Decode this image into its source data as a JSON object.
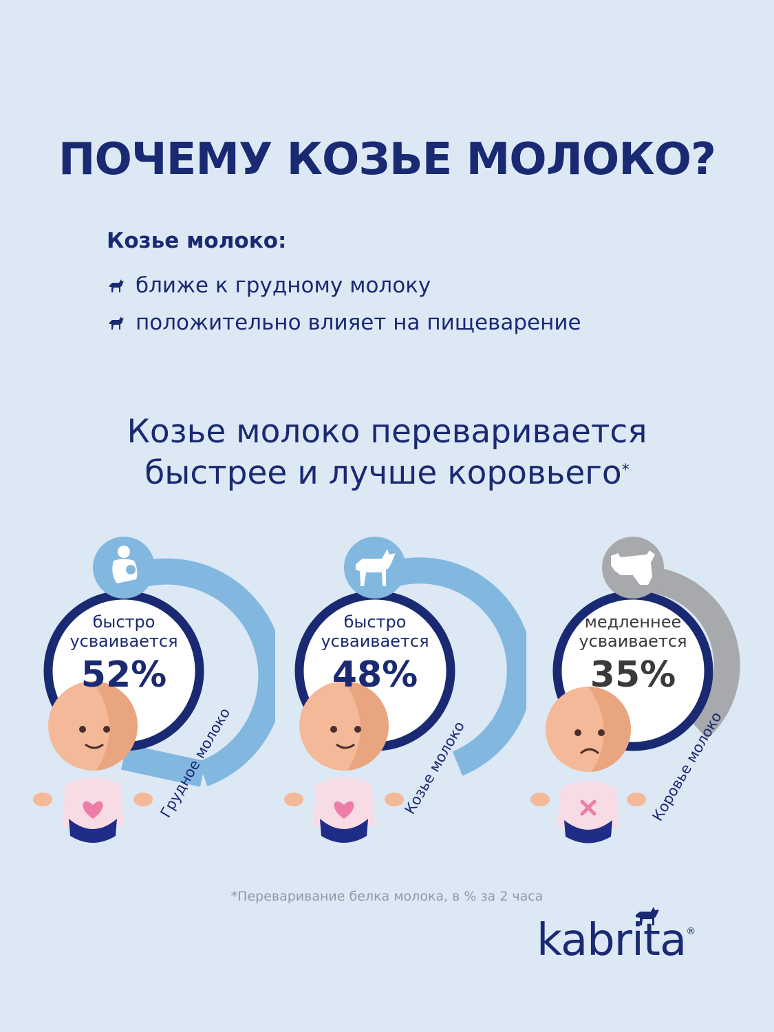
{
  "title": "ПОЧЕМУ КОЗЬЕ МОЛОКО?",
  "intro": {
    "heading": "Козье молоко:",
    "items": [
      "ближе к грудному молоку",
      "положительно влияет на пищеварение"
    ],
    "bullet_icon": "goat-icon"
  },
  "subtitle": {
    "line1": "Козье молоко переваривается",
    "line2": "быстрее и лучше коровьего",
    "mark": "*"
  },
  "panels": [
    {
      "caption_line1": "быстро",
      "caption_line2": "усваивается",
      "value": "52%",
      "label": "Грудное молоко",
      "icon": "breastfeeding-icon",
      "accent": "#82b7e0",
      "face": "happy",
      "shirt_icon": "heart-icon"
    },
    {
      "caption_line1": "быстро",
      "caption_line2": "усваивается",
      "value": "48%",
      "label": "Козье молоко",
      "icon": "goat-icon",
      "accent": "#82b7e0",
      "face": "happy",
      "shirt_icon": "heart-icon"
    },
    {
      "caption_line1": "медленнее",
      "caption_line2": "усваивается",
      "value": "35%",
      "label": "Коровье молоко",
      "icon": "cow-icon",
      "accent": "#a7a9ac",
      "face": "sad",
      "shirt_icon": "cross-icon"
    }
  ],
  "footnote": "*Переваривание белка молока, в % за 2 часа",
  "logo": {
    "text": "kabrita",
    "mark": "®"
  },
  "colors": {
    "background": "#dde8f5",
    "navy": "#1a2a72",
    "blue_accent": "#82b7e0",
    "grey_accent": "#a7a9ac",
    "skin": "#f3b998",
    "shirt": "#f7dbe5",
    "diaper": "#1f2d87",
    "heart": "#ee7ca8"
  }
}
